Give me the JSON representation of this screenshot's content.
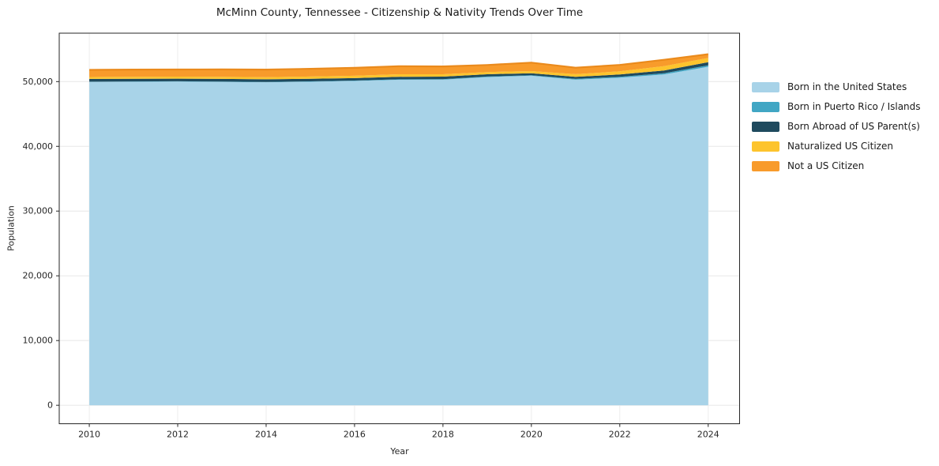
{
  "figure": {
    "title": "McMinn County, Tennessee - Citizenship & Nativity Trends Over Time"
  },
  "chart_data": {
    "type": "area",
    "stacked": true,
    "title": "McMinn County, Tennessee - Citizenship & Nativity Trends Over Time",
    "xlabel": "Year",
    "ylabel": "Population",
    "grid": true,
    "legend_position": "right-outside",
    "x": [
      2010,
      2011,
      2012,
      2013,
      2014,
      2015,
      2016,
      2017,
      2018,
      2019,
      2020,
      2021,
      2022,
      2023,
      2024
    ],
    "xticks": [
      2010,
      2012,
      2014,
      2016,
      2018,
      2020,
      2022,
      2024
    ],
    "yticks": [
      0,
      10000,
      20000,
      30000,
      40000,
      50000
    ],
    "xlim": [
      2009.32,
      2024.71
    ],
    "ylim": [
      -2850,
      57480
    ],
    "series": [
      {
        "name": "Born in the United States",
        "color": "#a8d3e8",
        "values": [
          49950,
          49980,
          50000,
          49950,
          49900,
          49980,
          50100,
          50280,
          50300,
          50700,
          50900,
          50300,
          50600,
          51100,
          52300
        ]
      },
      {
        "name": "Born in Puerto Rico / Islands",
        "color": "#41a6c4",
        "values": [
          40,
          40,
          50,
          50,
          50,
          60,
          60,
          70,
          80,
          80,
          90,
          110,
          140,
          180,
          220
        ]
      },
      {
        "name": "Born Abroad of US Parent(s)",
        "color": "#1f4a5e",
        "values": [
          420,
          410,
          400,
          420,
          400,
          390,
          380,
          400,
          390,
          350,
          300,
          320,
          360,
          440,
          480
        ]
      },
      {
        "name": "Naturalized US Citizen",
        "color": "#fdc42d",
        "values": [
          300,
          310,
          320,
          330,
          340,
          350,
          360,
          380,
          370,
          350,
          340,
          420,
          490,
          660,
          650
        ]
      },
      {
        "name": "Not a US Citizen",
        "color": "#f89b2b",
        "edge_color": "#ea8a1c",
        "values": [
          1100,
          1120,
          1100,
          1130,
          1160,
          1200,
          1230,
          1250,
          1200,
          1080,
          1300,
          1000,
          980,
          990,
          580
        ]
      }
    ]
  }
}
